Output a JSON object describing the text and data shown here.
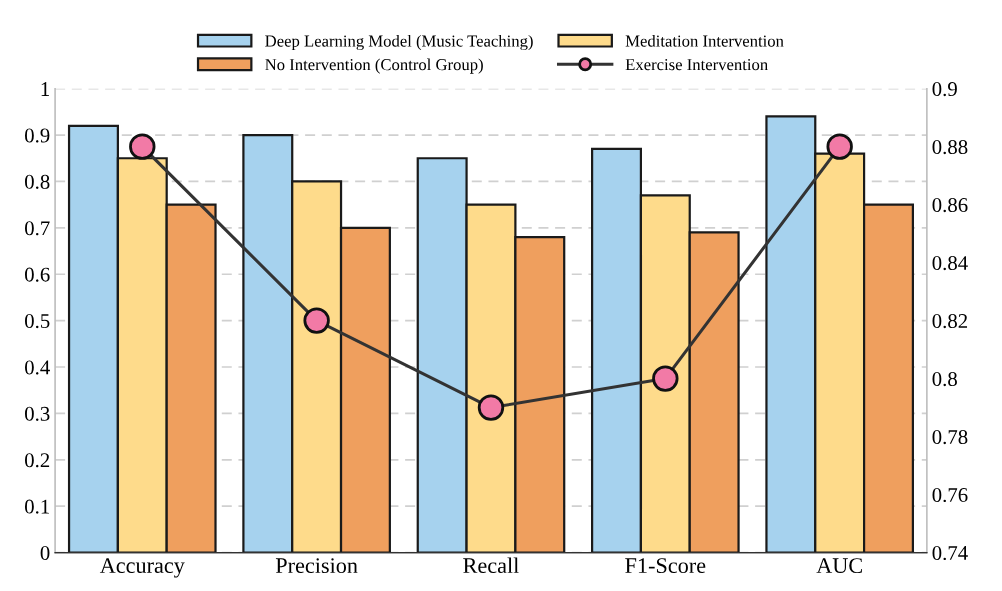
{
  "chart_data": {
    "type": "bar",
    "categories": [
      "Accuracy",
      "Precision",
      "Recall",
      "F1-Score",
      "AUC"
    ],
    "series": [
      {
        "name": "Deep Learning Model (Music Teaching)",
        "color": "#a6d2ee",
        "values": [
          0.92,
          0.9,
          0.85,
          0.87,
          0.94
        ]
      },
      {
        "name": "Meditation Intervention",
        "color": "#fedb8b",
        "values": [
          0.85,
          0.8,
          0.75,
          0.77,
          0.86
        ]
      },
      {
        "name": "No Intervention (Control Group)",
        "color": "#ef9f5e",
        "values": [
          0.75,
          0.7,
          0.68,
          0.69,
          0.75
        ]
      },
      {
        "name": "Exercise Intervention",
        "type": "line",
        "axis": "y2",
        "color": "#f27aa6",
        "values": [
          0.88,
          0.82,
          0.79,
          0.8,
          0.88
        ]
      }
    ],
    "ylim": [
      0,
      1
    ],
    "yticks": [
      0,
      0.1,
      0.2,
      0.3,
      0.4,
      0.5,
      0.6,
      0.7,
      0.8,
      0.9,
      1
    ],
    "y2lim": [
      0.74,
      0.9
    ],
    "y2ticks": [
      0.74,
      0.76,
      0.78,
      0.8,
      0.82,
      0.84,
      0.86,
      0.88,
      0.9
    ],
    "grid": "y",
    "legend": "top",
    "marker": "circle"
  }
}
